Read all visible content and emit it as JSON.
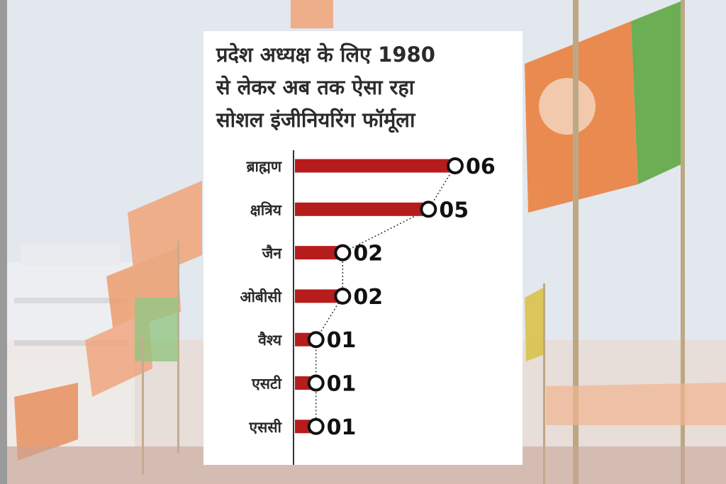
{
  "colors": {
    "bar": "#b71c1c",
    "axis": "#333333",
    "text": "#2b2b2b",
    "saffron": "#e8792b",
    "green": "#4c9a2a"
  },
  "background": {
    "description_icon": "bjp-flags-icon"
  },
  "chart_data": {
    "type": "bar",
    "orientation": "horizontal",
    "title_lines": [
      "प्रदेश अध्यक्ष के लिए 1980",
      "से लेकर अब तक ऐसा रहा",
      "सोशल इंजीनियरिंग फॉर्मूला"
    ],
    "categories": [
      "ब्राह्मण",
      "क्षत्रिय",
      "जैन",
      "ओबीसी",
      "वैश्य",
      "एसटी",
      "एससी"
    ],
    "values": [
      6,
      5,
      2,
      2,
      1,
      1,
      1
    ],
    "value_labels": [
      "06",
      "05",
      "02",
      "02",
      "01",
      "01",
      "01"
    ],
    "xlim": [
      0,
      6.5
    ],
    "xlabel": "",
    "ylabel": "",
    "grid": false,
    "legend": "none",
    "connector": "dotted"
  }
}
